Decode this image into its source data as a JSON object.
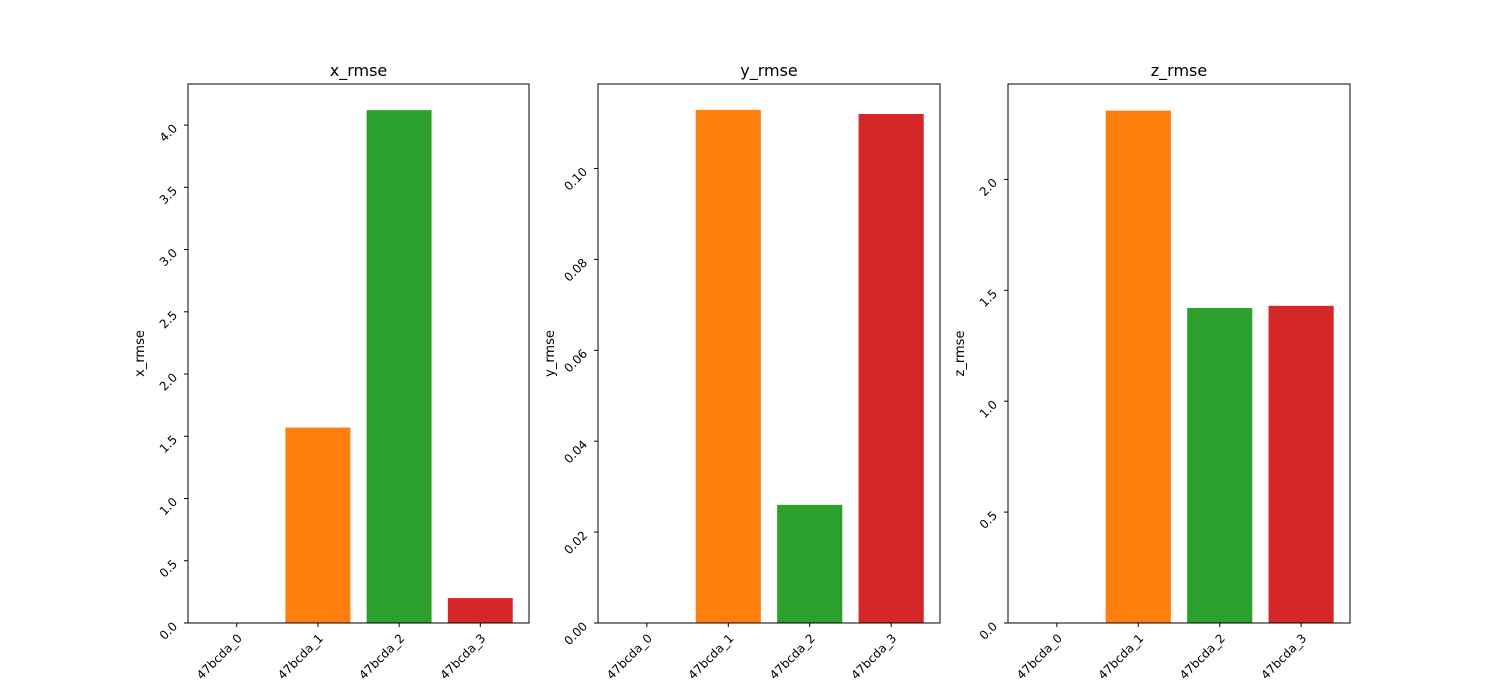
{
  "chart_data": [
    {
      "type": "bar",
      "title": "x_rmse",
      "xlabel": "",
      "ylabel": "x_rmse",
      "categories": [
        "47bcda_0",
        "47bcda_1",
        "47bcda_2",
        "47bcda_3"
      ],
      "values": [
        0.0,
        1.57,
        4.12,
        0.2
      ],
      "colors": [
        "#1f77b4",
        "#ff7f0e",
        "#2ca02c",
        "#d62728"
      ],
      "ylim": [
        0,
        4.33
      ],
      "yticks": [
        0.0,
        0.5,
        1.0,
        1.5,
        2.0,
        2.5,
        3.0,
        3.5,
        4.0
      ],
      "ytick_labels": [
        "0.0",
        "0.5",
        "1.0",
        "1.5",
        "2.0",
        "2.5",
        "3.0",
        "3.5",
        "4.0"
      ],
      "grid": false,
      "legend": "none"
    },
    {
      "type": "bar",
      "title": "y_rmse",
      "xlabel": "",
      "ylabel": "y_rmse",
      "categories": [
        "47bcda_0",
        "47bcda_1",
        "47bcda_2",
        "47bcda_3"
      ],
      "values": [
        0.0,
        0.1129,
        0.026,
        0.112
      ],
      "colors": [
        "#1f77b4",
        "#ff7f0e",
        "#2ca02c",
        "#d62728"
      ],
      "ylim": [
        0,
        0.1186
      ],
      "yticks": [
        0.0,
        0.02,
        0.04,
        0.06,
        0.08,
        0.1
      ],
      "ytick_labels": [
        "0.00",
        "0.02",
        "0.04",
        "0.06",
        "0.08",
        "0.10"
      ],
      "grid": false,
      "legend": "none"
    },
    {
      "type": "bar",
      "title": "z_rmse",
      "xlabel": "",
      "ylabel": "z_rmse",
      "categories": [
        "47bcda_0",
        "47bcda_1",
        "47bcda_2",
        "47bcda_3"
      ],
      "values": [
        0.0,
        2.31,
        1.42,
        1.43
      ],
      "colors": [
        "#1f77b4",
        "#ff7f0e",
        "#2ca02c",
        "#d62728"
      ],
      "ylim": [
        0,
        2.43
      ],
      "yticks": [
        0.0,
        0.5,
        1.0,
        1.5,
        2.0
      ],
      "ytick_labels": [
        "0.0",
        "0.5",
        "1.0",
        "1.5",
        "2.0"
      ],
      "grid": false,
      "legend": "none"
    }
  ]
}
